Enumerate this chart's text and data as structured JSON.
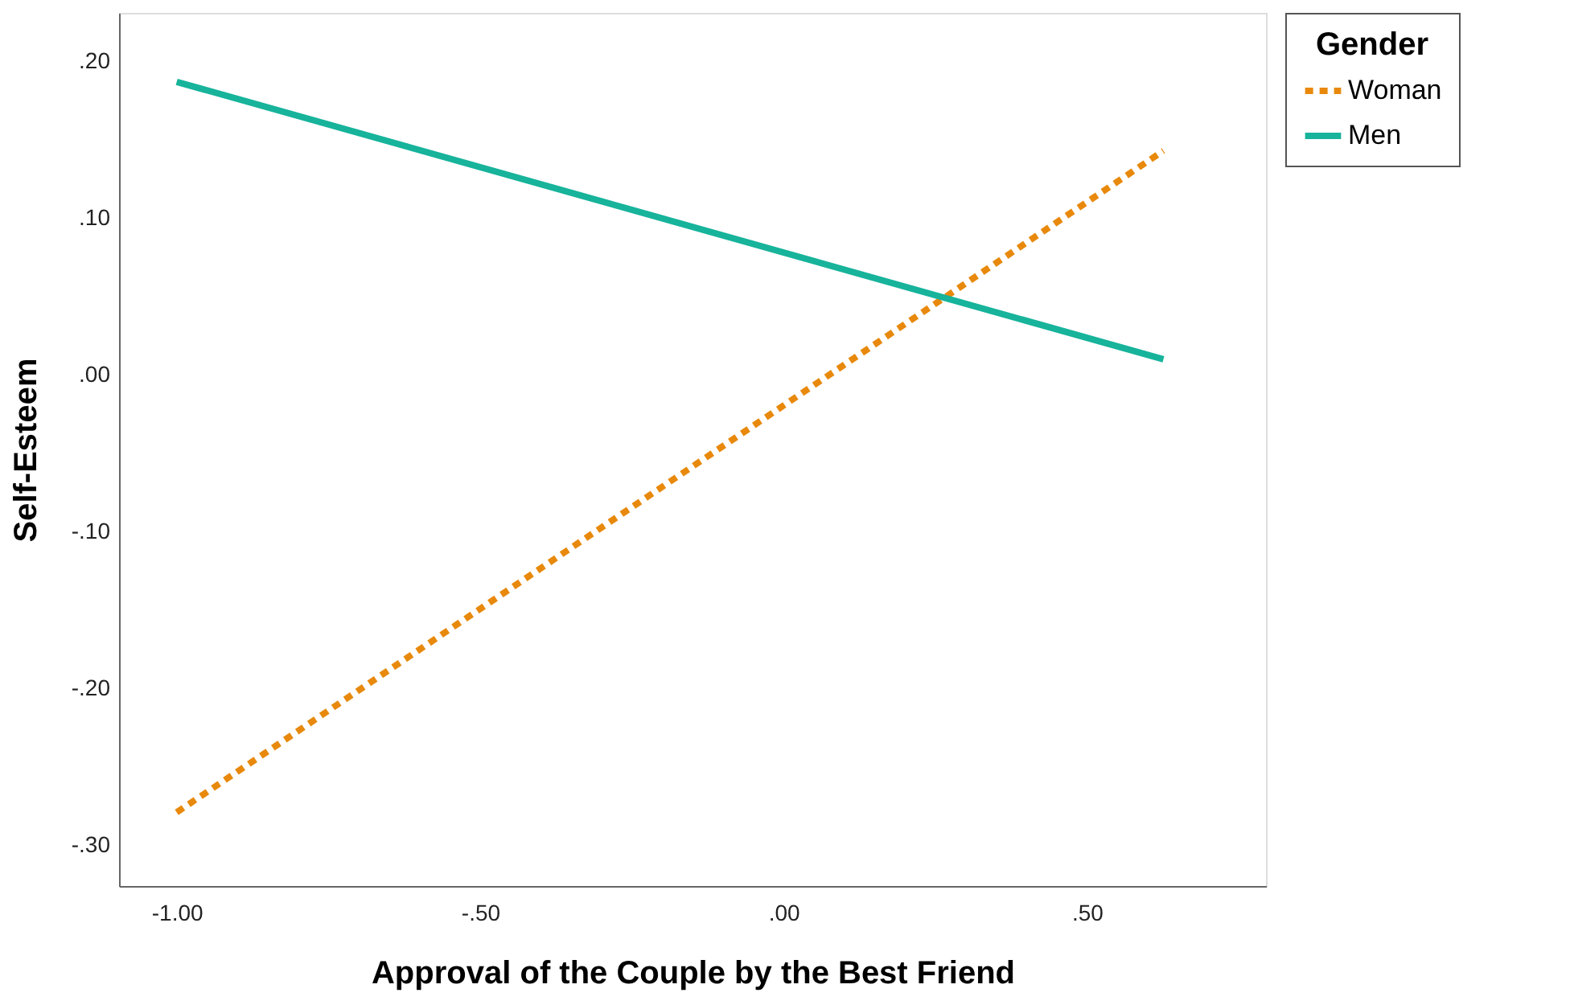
{
  "chart_data": {
    "type": "line",
    "xlabel": "Approval of the Couple by the Best Friend",
    "ylabel": "Self-Esteem",
    "legend_title": "Gender",
    "legend": "top right",
    "grid": false,
    "x": [
      -1.0,
      0.626
    ],
    "series": [
      {
        "name": "Woman",
        "color": "#e8890c",
        "line_style": "dotted",
        "values": [
          -0.279,
          0.143
        ]
      },
      {
        "name": "Men",
        "color": "#17b39b",
        "line_style": "solid",
        "values": [
          0.187,
          0.01
        ]
      }
    ],
    "xlim": [
      -1.095,
      0.795
    ],
    "xticks": [
      {
        "value": -1.0,
        "label": "-1.00"
      },
      {
        "value": -0.5,
        "label": "-.50"
      },
      {
        "value": 0.0,
        "label": ".00"
      },
      {
        "value": 0.5,
        "label": ".50"
      }
    ],
    "ylim": [
      -0.326,
      0.231
    ],
    "yticks": [
      {
        "value": -0.3,
        "label": "-.30"
      },
      {
        "value": -0.2,
        "label": "-.20"
      },
      {
        "value": -0.1,
        "label": "-.10"
      },
      {
        "value": 0.0,
        "label": ".00"
      },
      {
        "value": 0.1,
        "label": ".10"
      },
      {
        "value": 0.2,
        "label": ".20"
      }
    ]
  }
}
